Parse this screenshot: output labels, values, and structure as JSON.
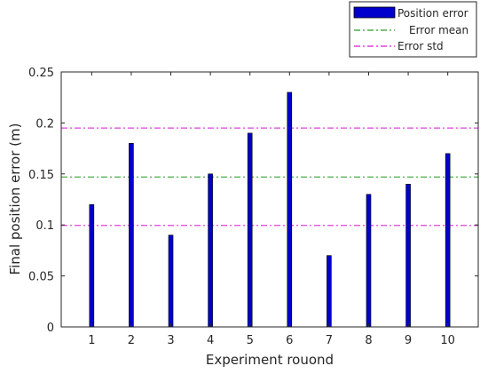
{
  "chart_data": {
    "type": "bar",
    "xlabel": "Experiment rouond",
    "ylabel": "Final position error (m)",
    "categories": [
      "1",
      "2",
      "3",
      "4",
      "5",
      "6",
      "7",
      "8",
      "9",
      "10"
    ],
    "series": [
      {
        "name": "Position error",
        "values": [
          0.12,
          0.18,
          0.09,
          0.15,
          0.19,
          0.23,
          0.07,
          0.13,
          0.14,
          0.17
        ],
        "color": "#0000cc"
      }
    ],
    "reference_lines": [
      {
        "name": "Error mean",
        "value": 0.147,
        "color": "#4daf4a",
        "style": "dash-dot"
      },
      {
        "name": "Error std",
        "value": 0.195,
        "color": "#e040e0",
        "style": "dash-dot"
      },
      {
        "name": "Error std",
        "value": 0.0995,
        "color": "#e040e0",
        "style": "dash-dot"
      }
    ],
    "ylim": [
      0,
      0.25
    ],
    "yticks": [
      "0",
      "0.05",
      "0.1",
      "0.15",
      "0.2",
      "0.25"
    ],
    "grid": false,
    "legend_position": "top-right (outside)",
    "legend": [
      "Position error",
      "Error mean",
      "Error std"
    ]
  }
}
